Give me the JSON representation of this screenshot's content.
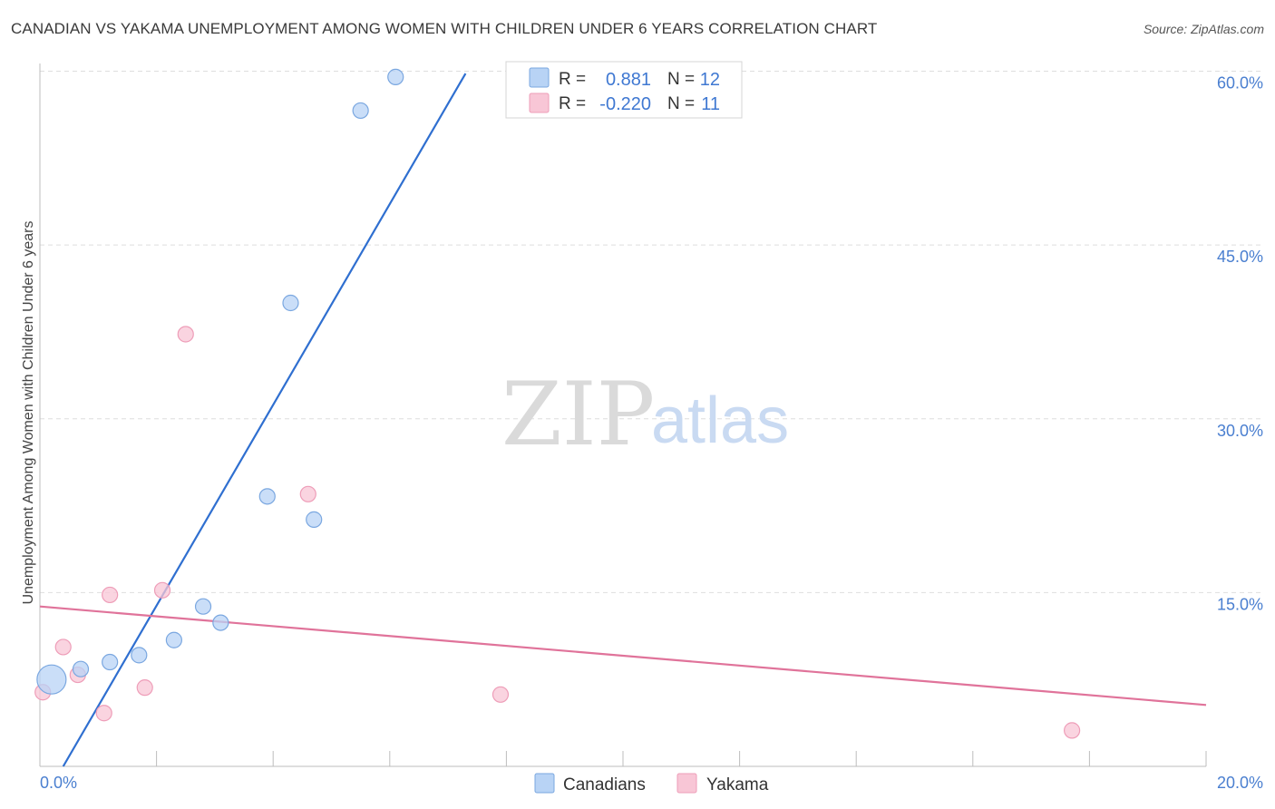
{
  "header": {
    "title": "CANADIAN VS YAKAMA UNEMPLOYMENT AMONG WOMEN WITH CHILDREN UNDER 6 YEARS CORRELATION CHART",
    "source": "Source: ZipAtlas.com"
  },
  "watermark": {
    "zip": "ZIP",
    "atlas": "atlas"
  },
  "legend": {
    "r_label": "R =",
    "n_label": "N =",
    "canadians": {
      "r": "0.881",
      "n": "12"
    },
    "yakama": {
      "r": "-0.220",
      "n": "11"
    }
  },
  "bottom_legend": {
    "canadians": "Canadians",
    "yakama": "Yakama"
  },
  "colors": {
    "canadians_fill": "#b8d3f5",
    "canadians_stroke": "#7aa7e0",
    "canadians_line": "#2f6fd0",
    "yakama_fill": "#f8c6d6",
    "yakama_stroke": "#ee9db8",
    "yakama_line": "#e0739a",
    "axis_label": "#4a7fd0",
    "grid": "#dedede"
  },
  "chart_data": {
    "type": "scatter",
    "title": "CANADIAN VS YAKAMA UNEMPLOYMENT AMONG WOMEN WITH CHILDREN UNDER 6 YEARS CORRELATION CHART",
    "xlabel": "",
    "ylabel": "Unemployment Among Women with Children Under 6 years",
    "xlim": [
      0,
      20
    ],
    "ylim": [
      0,
      60
    ],
    "x_tick_labels": [
      "0.0%",
      "20.0%"
    ],
    "y_ticks": [
      {
        "value": 15,
        "label": "15.0%"
      },
      {
        "value": 30,
        "label": "30.0%"
      },
      {
        "value": 45,
        "label": "45.0%"
      },
      {
        "value": 60,
        "label": "60.0%"
      }
    ],
    "grid": true,
    "legend_position": "top-center",
    "series": [
      {
        "name": "Canadians",
        "points": [
          {
            "x": 0.2,
            "y": 7.5,
            "big": true
          },
          {
            "x": 0.7,
            "y": 8.4
          },
          {
            "x": 1.2,
            "y": 9.0
          },
          {
            "x": 1.7,
            "y": 9.6
          },
          {
            "x": 2.3,
            "y": 10.9
          },
          {
            "x": 2.8,
            "y": 13.8
          },
          {
            "x": 3.1,
            "y": 12.4
          },
          {
            "x": 3.9,
            "y": 23.3
          },
          {
            "x": 4.3,
            "y": 40.0
          },
          {
            "x": 4.7,
            "y": 21.3
          },
          {
            "x": 5.5,
            "y": 56.6
          },
          {
            "x": 6.1,
            "y": 59.5
          }
        ],
        "trend": {
          "x0": 0.4,
          "y0": 0.0,
          "x1": 7.3,
          "y1": 59.8
        }
      },
      {
        "name": "Yakama",
        "points": [
          {
            "x": 0.05,
            "y": 6.4
          },
          {
            "x": 0.4,
            "y": 10.3
          },
          {
            "x": 0.65,
            "y": 7.9
          },
          {
            "x": 1.1,
            "y": 4.6
          },
          {
            "x": 1.2,
            "y": 14.8
          },
          {
            "x": 1.8,
            "y": 6.8
          },
          {
            "x": 2.1,
            "y": 15.2
          },
          {
            "x": 2.5,
            "y": 37.3
          },
          {
            "x": 4.6,
            "y": 23.5
          },
          {
            "x": 7.9,
            "y": 6.2
          },
          {
            "x": 17.7,
            "y": 3.1
          }
        ],
        "trend": {
          "x0": 0.0,
          "y0": 13.8,
          "x1": 20.0,
          "y1": 5.3
        }
      }
    ]
  }
}
